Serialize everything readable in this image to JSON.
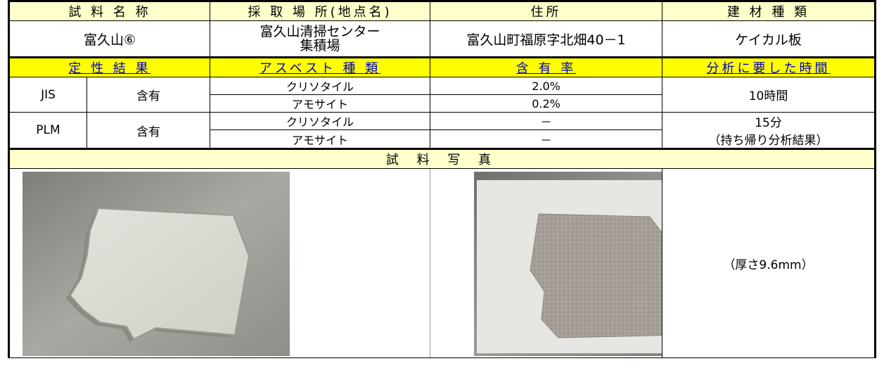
{
  "header": {
    "sample_name": "試 料 名 称",
    "location": "採 取 場 所(地点名)",
    "address": "住所",
    "material_type": "建 材 種 類"
  },
  "info": {
    "sample_name": "富久山⑥",
    "location_line1": "富久山清掃センター",
    "location_line2": "集積場",
    "address": "富久山町福原字北畑40－1",
    "material_type": "ケイカル板"
  },
  "result_header": {
    "qualitative": "定 性 結 果",
    "asbestos_type": "アスベスト 種 類",
    "content_rate": "含 有 率",
    "analysis_time": "分析に要した時間"
  },
  "results": {
    "jis": {
      "method": "JIS",
      "result": "含有",
      "rows": [
        {
          "type": "クリソタイル",
          "rate": "2.0%"
        },
        {
          "type": "アモサイト",
          "rate": "0.2%"
        }
      ],
      "time": "10時間"
    },
    "plm": {
      "method": "PLM",
      "result": "含有",
      "rows": [
        {
          "type": "クリソタイル",
          "rate": "－"
        },
        {
          "type": "アモサイト",
          "rate": "－"
        }
      ],
      "time_line1": "15分",
      "time_line2": "（持ち帰り分析結果）"
    }
  },
  "photo_section": {
    "title": "試 料 写 真",
    "thickness_note": "（厚さ9.6mm）"
  },
  "colors": {
    "pale_yellow": "#ffffcc",
    "yellow": "#ffff00",
    "link_blue": "#0000cc"
  }
}
